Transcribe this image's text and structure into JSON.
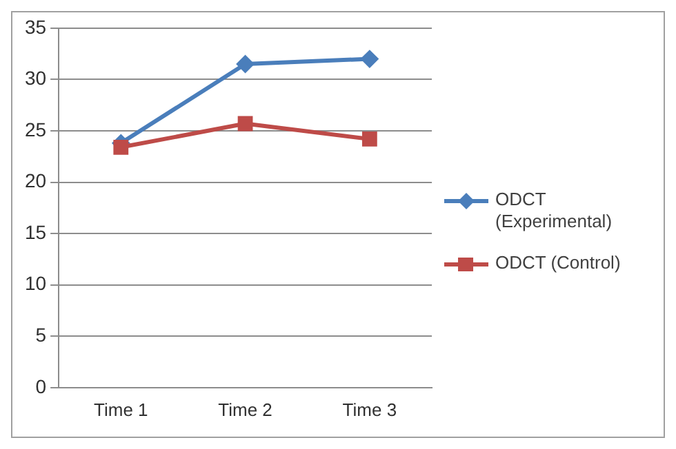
{
  "chart_data": {
    "type": "line",
    "categories": [
      "Time 1",
      "Time 2",
      "Time 3"
    ],
    "series": [
      {
        "name": "ODCT (Experimental)",
        "color": "#4a7ebb",
        "marker": "diamond",
        "values": [
          23.8,
          31.5,
          32.0
        ]
      },
      {
        "name": "ODCT (Control)",
        "color": "#be4b48",
        "marker": "square",
        "values": [
          23.4,
          25.7,
          24.2
        ]
      }
    ],
    "ylim": [
      0,
      35
    ],
    "yticks": [
      0,
      5,
      10,
      15,
      20,
      25,
      30,
      35
    ],
    "grid": "y",
    "legend": "right",
    "line_style": "solid"
  }
}
